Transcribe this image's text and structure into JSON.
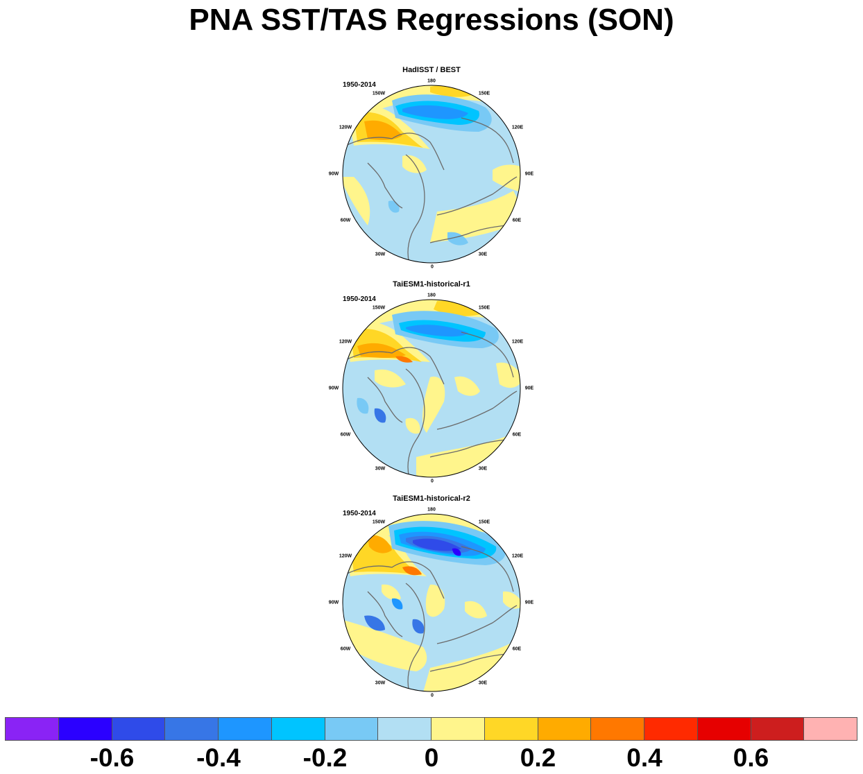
{
  "figure": {
    "title": "PNA SST/TAS Regressions (SON)"
  },
  "panels": [
    {
      "title": "HadISST / BEST",
      "period": "1950-2014"
    },
    {
      "title": "TaiESM1-historical-r1",
      "period": "1950-2014"
    },
    {
      "title": "TaiESM1-historical-r2",
      "period": "1950-2014"
    }
  ],
  "longitude_labels": [
    "180",
    "150E",
    "120E",
    "90E",
    "60E",
    "30E",
    "0",
    "30W",
    "60W",
    "90W",
    "120W",
    "150W"
  ],
  "colorbar": {
    "colors": [
      "#8a23f5",
      "#2b00ff",
      "#2f4be9",
      "#3776e6",
      "#1e96ff",
      "#00c4ff",
      "#78c9f5",
      "#b2dff3",
      "#fff58c",
      "#ffd726",
      "#ffab00",
      "#ff7800",
      "#ff2a00",
      "#e60000",
      "#cd1e1e",
      "#ffb2b2"
    ],
    "tick_labels": [
      "-0.6",
      "-0.4",
      "-0.2",
      "0",
      "0.2",
      "0.4",
      "0.6"
    ],
    "tick_values": [
      -0.6,
      -0.4,
      -0.2,
      0,
      0.2,
      0.4,
      0.6
    ]
  }
}
